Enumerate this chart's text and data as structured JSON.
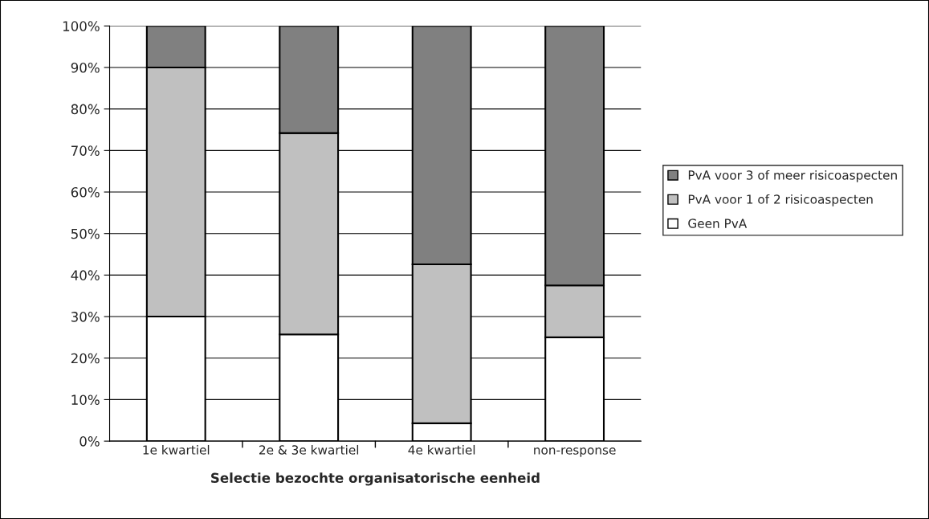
{
  "chart_data": {
    "type": "bar",
    "stacked": true,
    "xlabel": "Selectie bezochte organisatorische eenheid",
    "categories": [
      "1e kwartiel",
      "2e & 3e kwartiel",
      "4e kwartiel",
      "non-response"
    ],
    "series": [
      {
        "name": "Geen PvA",
        "color": "#ffffff",
        "values": [
          30,
          25.7,
          4.3,
          25
        ]
      },
      {
        "name": "PvA voor 1 of 2 risicoaspecten",
        "color": "#c0c0c0",
        "values": [
          60,
          48.5,
          38.3,
          12.5
        ]
      },
      {
        "name": "PvA voor 3 of meer risicoaspecten",
        "color": "#808080",
        "values": [
          10,
          25.8,
          57.4,
          62.5
        ]
      }
    ],
    "ylim": [
      0,
      100
    ],
    "yticks": [
      {
        "value": 0,
        "label": "0%"
      },
      {
        "value": 10,
        "label": "10%"
      },
      {
        "value": 20,
        "label": "20%"
      },
      {
        "value": 30,
        "label": "30%"
      },
      {
        "value": 40,
        "label": "40%"
      },
      {
        "value": 50,
        "label": "50%"
      },
      {
        "value": 60,
        "label": "60%"
      },
      {
        "value": 70,
        "label": "70%"
      },
      {
        "value": 80,
        "label": "80%"
      },
      {
        "value": 90,
        "label": "90%"
      },
      {
        "value": 100,
        "label": "100%"
      }
    ],
    "grid": "y",
    "legend": "right"
  }
}
